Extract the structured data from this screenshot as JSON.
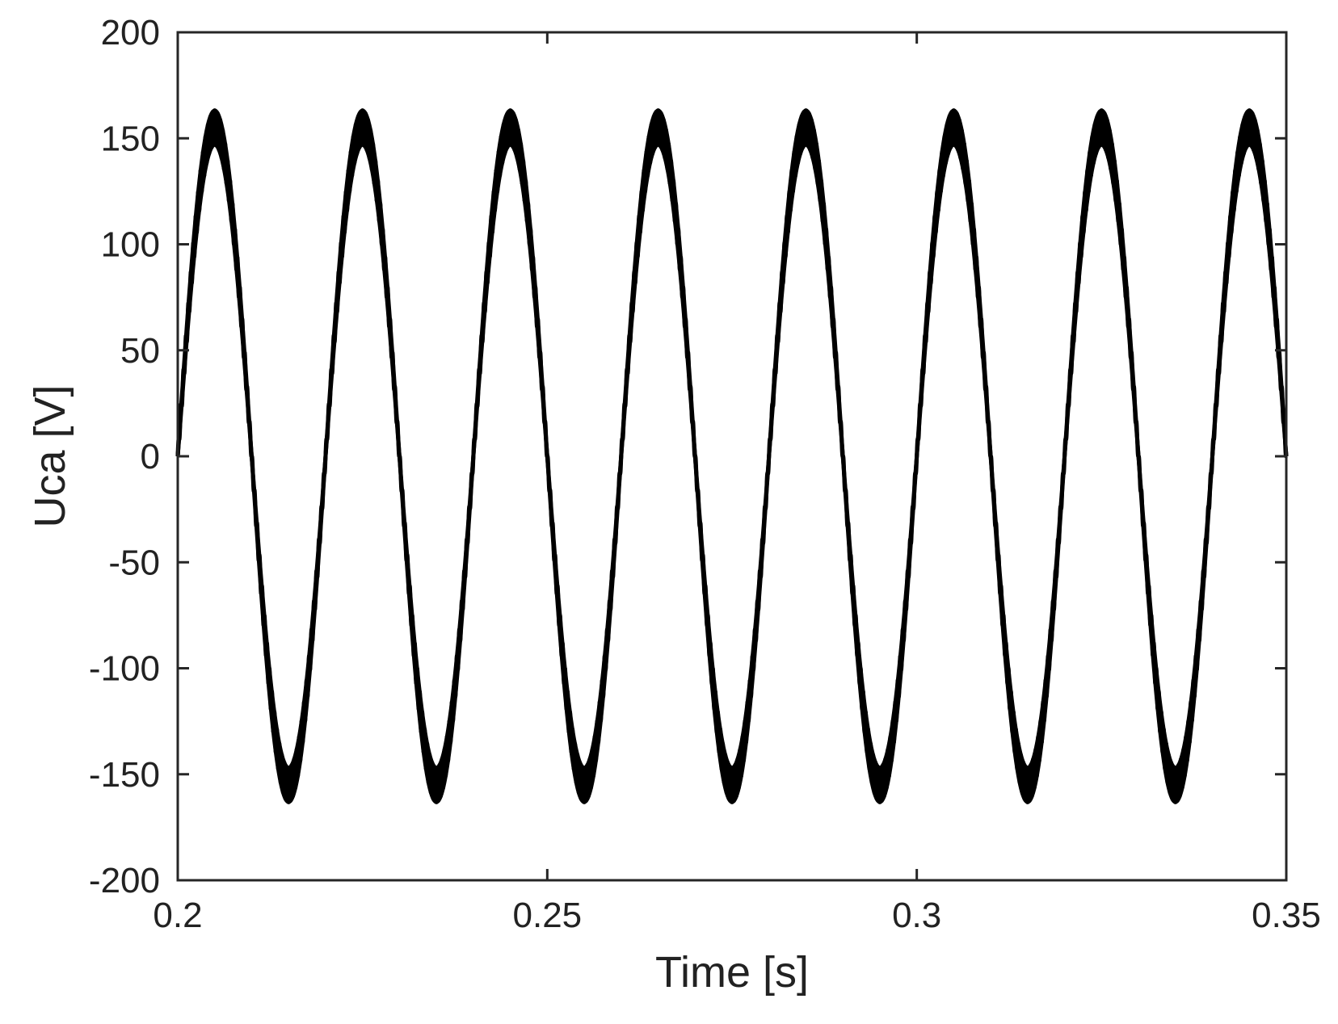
{
  "chart_data": {
    "type": "line",
    "title": "",
    "xlabel": "Time [s]",
    "ylabel": "Uca [V]",
    "xlim": [
      0.2,
      0.35
    ],
    "ylim": [
      -200,
      200
    ],
    "xticks": [
      0.2,
      0.25,
      0.3,
      0.35
    ],
    "xtick_labels": [
      "0.2",
      "0.25",
      "0.3",
      "0.35"
    ],
    "yticks": [
      200,
      150,
      100,
      50,
      0,
      -50,
      -100,
      -150,
      -200
    ],
    "ytick_labels": [
      "200",
      "150",
      "100",
      "50",
      "0",
      "-50",
      "-100",
      "-150",
      "-200"
    ],
    "grid": false,
    "legend": "none",
    "line_color": "#000000",
    "series": [
      {
        "waveform": "sinusoid with high-frequency ripple",
        "frequency_hz": 50,
        "amplitude_v": 155,
        "ripple_band_v": [
          147,
          163
        ],
        "phase_start_s": 0.2,
        "peaks": [
          {
            "x": 0.205,
            "y": 163
          },
          {
            "x": 0.225,
            "y": 163
          },
          {
            "x": 0.245,
            "y": 163
          },
          {
            "x": 0.265,
            "y": 163
          },
          {
            "x": 0.285,
            "y": 163
          },
          {
            "x": 0.305,
            "y": 163
          },
          {
            "x": 0.325,
            "y": 163
          },
          {
            "x": 0.345,
            "y": 163
          }
        ],
        "troughs": [
          {
            "x": 0.215,
            "y": -163
          },
          {
            "x": 0.235,
            "y": -163
          },
          {
            "x": 0.255,
            "y": -163
          },
          {
            "x": 0.275,
            "y": -163
          },
          {
            "x": 0.295,
            "y": -163
          },
          {
            "x": 0.315,
            "y": -163
          },
          {
            "x": 0.335,
            "y": -163
          }
        ]
      }
    ]
  }
}
